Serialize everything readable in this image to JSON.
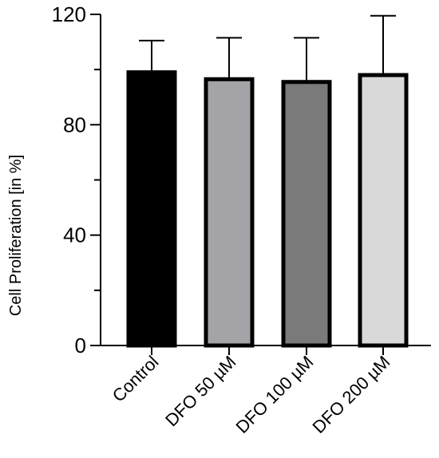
{
  "chart_data": {
    "type": "bar",
    "title": "",
    "xlabel": "",
    "ylabel": "Cell Proliferation [in %]",
    "ylim": [
      0,
      120
    ],
    "yticks": [
      0,
      40,
      80,
      120
    ],
    "yminor_step": 20,
    "categories": [
      "Control",
      "DFO 50 µM",
      "DFO 100 µM",
      "DFO 200 µM"
    ],
    "values": [
      99,
      96.5,
      95.5,
      98
    ],
    "error_plus": [
      11.5,
      15,
      16,
      21.5
    ],
    "colors": [
      "#000000",
      "#a3a3a8",
      "#7a7a7a",
      "#d9d9d9"
    ],
    "bar_edge_color": "#000000",
    "grid": false,
    "legend": "none"
  }
}
